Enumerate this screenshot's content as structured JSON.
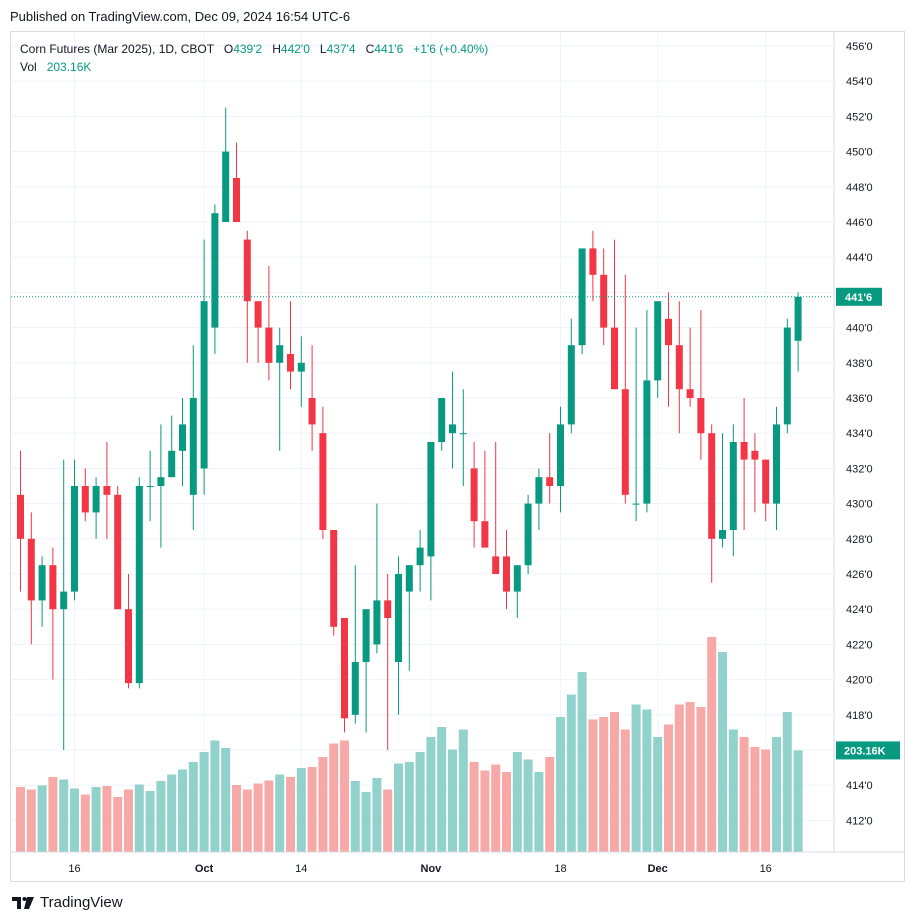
{
  "published": "Published on TradingView.com, Dec 09, 2024 16:54 UTC-6",
  "legend": {
    "symbol": "Corn Futures (Mar 2025), 1D, CBOT",
    "o_label": "O",
    "o_value": "439'2",
    "h_label": "H",
    "h_value": "442'0",
    "l_label": "L",
    "l_value": "437'4",
    "c_label": "C",
    "c_value": "441'6",
    "change": "+1'6 (+0.40%)",
    "vol_label": "Vol",
    "vol_value": "203.16K"
  },
  "footer": {
    "brand": "TradingView",
    "logo_icon": "tradingview-logo-icon"
  },
  "colors": {
    "up": "#089981",
    "down": "#f23645",
    "vol_up": "#92d2cc",
    "vol_down": "#f7a9a7",
    "grid": "#f0f3fa",
    "last_line": "#089981"
  },
  "chart_data": {
    "type": "candlestick",
    "title": "Corn Futures (Mar 2025), 1D, CBOT",
    "price_axis": {
      "ticks": [
        "456'0",
        "454'0",
        "452'0",
        "450'0",
        "448'0",
        "446'0",
        "444'0",
        "442'0",
        "440'0",
        "438'0",
        "436'0",
        "434'0",
        "432'0",
        "430'0",
        "428'0",
        "426'0",
        "424'0",
        "422'0",
        "420'0",
        "418'0",
        "416'0",
        "414'0",
        "412'0"
      ],
      "tick_values": [
        456,
        454,
        452,
        450,
        448,
        446,
        444,
        442,
        440,
        438,
        436,
        434,
        432,
        430,
        428,
        426,
        424,
        422,
        420,
        418,
        416,
        414,
        412
      ],
      "range": [
        410.5,
        456.9
      ]
    },
    "time_axis": {
      "labels": [
        "16",
        "Oct",
        "14",
        "Nov",
        "18",
        "Dec",
        "16"
      ],
      "label_bar_index": [
        5,
        17,
        26,
        38,
        50,
        59,
        69
      ]
    },
    "last_price": {
      "value": 441.75,
      "label": "441'6"
    },
    "last_volume": {
      "label": "203.16K",
      "scale_max_k": 300
    },
    "ohlc_volume": [
      [
        430.5,
        433.0,
        425.0,
        428.0,
        130
      ],
      [
        428.0,
        429.5,
        422.0,
        424.5,
        125
      ],
      [
        424.5,
        427.0,
        423.0,
        426.5,
        133
      ],
      [
        426.5,
        427.5,
        420.0,
        424.0,
        150
      ],
      [
        424.0,
        432.5,
        416.0,
        425.0,
        145
      ],
      [
        425.0,
        432.5,
        424.5,
        431.0,
        127
      ],
      [
        431.0,
        432.0,
        429.0,
        429.5,
        115
      ],
      [
        429.5,
        431.5,
        428.0,
        431.0,
        130
      ],
      [
        431.0,
        433.5,
        428.0,
        430.5,
        132
      ],
      [
        430.5,
        431.0,
        424.0,
        424.0,
        110
      ],
      [
        424.0,
        426.0,
        419.5,
        419.8,
        125
      ],
      [
        419.8,
        431.5,
        419.5,
        431.0,
        135
      ],
      [
        431.0,
        433.0,
        429.0,
        431.0,
        122
      ],
      [
        431.0,
        434.5,
        427.5,
        431.5,
        142
      ],
      [
        431.5,
        435.0,
        431.5,
        433.0,
        155
      ],
      [
        433.0,
        436.0,
        431.0,
        434.5,
        165
      ],
      [
        430.5,
        439.0,
        428.5,
        436.0,
        180
      ],
      [
        432.0,
        445.0,
        430.5,
        441.5,
        200
      ],
      [
        440.0,
        447.0,
        438.5,
        446.5,
        223
      ],
      [
        446.0,
        452.5,
        446.0,
        450.0,
        208
      ],
      [
        448.5,
        450.5,
        446.0,
        446.0,
        134
      ],
      [
        445.0,
        445.5,
        438.0,
        441.5,
        125
      ],
      [
        441.5,
        441.5,
        438.0,
        440.0,
        137
      ],
      [
        440.0,
        443.5,
        437.0,
        438.0,
        143
      ],
      [
        438.0,
        440.0,
        433.0,
        439.0,
        155
      ],
      [
        438.5,
        441.5,
        436.5,
        437.5,
        150
      ],
      [
        437.5,
        439.5,
        435.5,
        438.0,
        168
      ],
      [
        436.0,
        439.0,
        433.0,
        434.5,
        170
      ],
      [
        434.0,
        435.5,
        428.0,
        428.5,
        190
      ],
      [
        428.5,
        428.5,
        422.5,
        423.0,
        217
      ],
      [
        423.5,
        423.5,
        417.0,
        417.8,
        223
      ],
      [
        418.0,
        426.5,
        417.5,
        421.0,
        142
      ],
      [
        421.0,
        423.5,
        417.0,
        424.0,
        120
      ],
      [
        422.0,
        430.0,
        421.5,
        424.5,
        148
      ],
      [
        424.5,
        426.0,
        416.0,
        423.5,
        125
      ],
      [
        421.0,
        427.0,
        418.0,
        426.0,
        177
      ],
      [
        425.0,
        426.5,
        420.5,
        426.5,
        180
      ],
      [
        426.5,
        428.5,
        425.0,
        427.5,
        200
      ],
      [
        427.0,
        432.0,
        424.5,
        433.5,
        230
      ],
      [
        433.5,
        435.5,
        433.0,
        436.0,
        250
      ],
      [
        434.0,
        437.5,
        432.0,
        434.5,
        205
      ],
      [
        434.0,
        436.5,
        431.0,
        434.0,
        245
      ],
      [
        432.0,
        433.5,
        427.5,
        429.0,
        180
      ],
      [
        429.0,
        433.0,
        427.5,
        427.5,
        163
      ],
      [
        427.0,
        433.5,
        426.0,
        426.0,
        175
      ],
      [
        427.0,
        428.5,
        424.0,
        425.0,
        160
      ],
      [
        425.0,
        426.5,
        423.5,
        426.5,
        200
      ],
      [
        426.5,
        430.5,
        426.0,
        430.0,
        185
      ],
      [
        430.0,
        432.0,
        428.5,
        431.5,
        160
      ],
      [
        431.5,
        434.0,
        430.0,
        431.0,
        190
      ],
      [
        431.0,
        435.5,
        429.5,
        434.5,
        270
      ],
      [
        434.5,
        440.5,
        434.0,
        439.0,
        315
      ],
      [
        439.0,
        444.0,
        438.5,
        444.5,
        360
      ],
      [
        444.5,
        445.5,
        441.5,
        443.0,
        265
      ],
      [
        443.0,
        444.5,
        439.0,
        440.0,
        270
      ],
      [
        440.0,
        445.0,
        439.0,
        436.5,
        280
      ],
      [
        436.5,
        443.0,
        430.0,
        430.5,
        245
      ],
      [
        430.0,
        440.0,
        429.0,
        430.0,
        295
      ],
      [
        430.0,
        441.0,
        429.5,
        437.0,
        285
      ],
      [
        437.0,
        440.0,
        436.0,
        441.5,
        230
      ],
      [
        440.5,
        442.0,
        435.5,
        439.0,
        255
      ],
      [
        439.0,
        441.5,
        434.0,
        436.5,
        295
      ],
      [
        436.5,
        440.0,
        435.5,
        436.0,
        300
      ],
      [
        436.0,
        441.0,
        432.5,
        434.0,
        290
      ],
      [
        434.0,
        434.5,
        425.5,
        428.0,
        430
      ],
      [
        428.0,
        434.0,
        427.5,
        428.5,
        400
      ],
      [
        428.5,
        434.5,
        427.0,
        433.5,
        245
      ],
      [
        433.5,
        436.0,
        428.5,
        432.5,
        230
      ],
      [
        433.0,
        434.0,
        429.5,
        432.5,
        210
      ],
      [
        432.5,
        432.5,
        429.0,
        430.0,
        205
      ],
      [
        430.0,
        435.5,
        428.5,
        434.5,
        230
      ],
      [
        434.5,
        440.5,
        434.0,
        440.0,
        280
      ],
      [
        439.25,
        442.0,
        437.5,
        441.75,
        203.16
      ]
    ]
  }
}
